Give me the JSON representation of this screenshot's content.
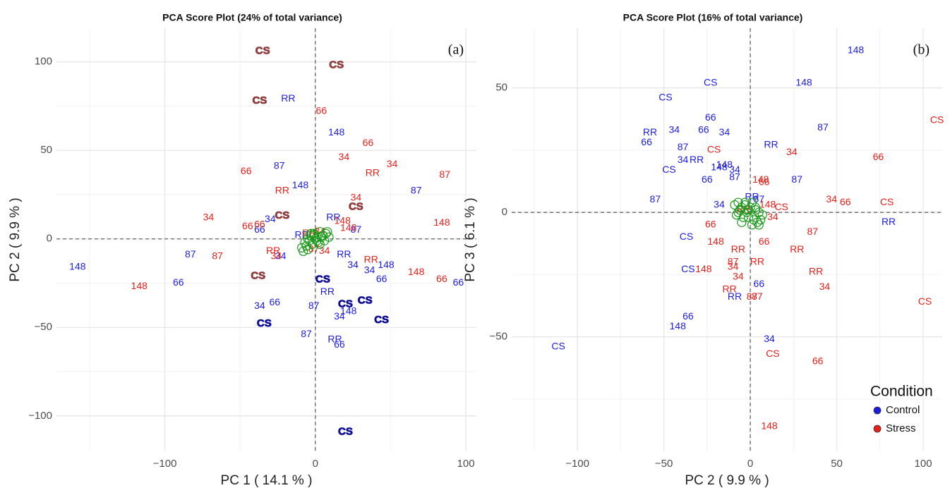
{
  "chart_data": [
    {
      "type": "scatter",
      "title": "PCA Score Plot (24% of total variance)",
      "annotation": "(a)",
      "xlabel": "PC 1 ( 14.1 % )",
      "ylabel": "PC 2 ( 9.9 % )",
      "xlim": [
        -172,
        107
      ],
      "ylim": [
        -120,
        119
      ],
      "xticks": [
        {
          "value": -100,
          "label": "−100"
        },
        0,
        100
      ],
      "yticks": [
        {
          "value": -100,
          "label": "−100"
        },
        {
          "value": -50,
          "label": "−50"
        },
        0,
        50,
        100
      ],
      "grid": true,
      "zero_lines": true,
      "series": [
        {
          "color": "#1c1ce0",
          "labels": [
            "RR",
            "148",
            "87",
            "148",
            "87",
            "34",
            "66",
            "RR",
            "87",
            "RR",
            "RR",
            "87",
            "148",
            "34",
            "34",
            "34",
            "148",
            "66",
            "66",
            "66",
            "RR",
            "34",
            "66",
            "87",
            "148",
            "34",
            "87",
            "RR",
            "66"
          ],
          "x": [
            -18,
            14,
            -24,
            -10,
            67,
            -30,
            -37,
            12,
            27,
            -9,
            19,
            -83,
            -158,
            -23,
            25,
            36,
            47,
            -91,
            44,
            95,
            8,
            -37,
            -27,
            -1,
            22,
            16,
            -6,
            13,
            16
          ],
          "y": [
            79,
            60,
            41,
            30,
            27,
            11,
            5,
            12,
            5,
            2,
            -9,
            -9,
            -16,
            -10,
            -15,
            -18,
            -15,
            -25,
            -23,
            -25,
            -30,
            -38,
            -36,
            -38,
            -41,
            -44,
            -54,
            -57,
            -60
          ]
        },
        {
          "color": "#e8201a",
          "labels": [
            "66",
            "66",
            "34",
            "34",
            "RR",
            "87",
            "66",
            "RR",
            "34",
            "34",
            "66",
            "66",
            "148",
            "148",
            "148",
            "RR",
            "34",
            "87",
            "34",
            "87",
            "RR",
            "148",
            "66",
            "148",
            "RR",
            "34"
          ],
          "x": [
            4,
            35,
            19,
            51,
            38,
            86,
            -46,
            -22,
            27,
            -71,
            -45,
            -37,
            18,
            22,
            84,
            -28,
            -26,
            -65,
            6,
            -1,
            37,
            67,
            84,
            -117,
            -4,
            3
          ],
          "y": [
            72,
            54,
            46,
            42,
            37,
            36,
            38,
            27,
            23,
            12,
            7,
            8,
            10,
            6,
            9,
            -7,
            -10,
            -10,
            -7,
            -6,
            -12,
            -19,
            -23,
            -27,
            3,
            4
          ]
        },
        {
          "color": "#8f3b3b",
          "bold": true,
          "labels": [
            "CS",
            "CS",
            "CS",
            "CS",
            "CS",
            "CS"
          ],
          "x": [
            -35,
            14,
            -37,
            -22,
            27,
            -38
          ],
          "y": [
            106,
            98,
            78,
            13,
            18,
            -21
          ]
        },
        {
          "color": "#0c0c96",
          "bold": true,
          "labels": [
            "CS",
            "CS",
            "CS",
            "CS",
            "CS",
            "CS"
          ],
          "x": [
            5,
            20,
            33,
            44,
            -34,
            20
          ],
          "y": [
            -23,
            -37,
            -35,
            -46,
            -48,
            -109
          ]
        },
        {
          "color": "#1a9a1a",
          "marker": "circle",
          "x": [
            -9,
            -7,
            -5,
            -3,
            -1,
            1,
            3,
            5,
            7,
            9,
            -8,
            -6,
            -4,
            -2,
            0,
            2,
            4,
            6,
            -5,
            -1,
            3,
            -3,
            1,
            8
          ],
          "y": [
            -5,
            -2,
            0,
            2,
            3,
            1,
            4,
            2,
            3,
            1,
            -7,
            -4,
            -1,
            -3,
            0,
            -2,
            1,
            -1,
            -6,
            2,
            -3,
            3,
            -1,
            4
          ]
        }
      ]
    },
    {
      "type": "scatter",
      "title": "PCA Score Plot (16% of total variance)",
      "annotation": "(b)",
      "xlabel": "PC 2 ( 9.9 % )",
      "ylabel": "PC 3 ( 6.1 % )",
      "xlim": [
        -138,
        111
      ],
      "ylim": [
        -96,
        74
      ],
      "xticks": [
        {
          "value": -100,
          "label": "−100"
        },
        {
          "value": -50,
          "label": "−50"
        },
        0,
        50,
        100
      ],
      "yticks": [
        {
          "value": -50,
          "label": "−50"
        },
        0,
        50
      ],
      "grid": true,
      "zero_lines": true,
      "legend": {
        "title": "Condition",
        "position": "bottom-right"
      },
      "series": [
        {
          "name": "Control",
          "color": "#1c1ce0",
          "labels": [
            "148",
            "CS",
            "148",
            "CS",
            "66",
            "87",
            "RR",
            "34",
            "66",
            "34",
            "66",
            "87",
            "RR",
            "34",
            "RR",
            "148",
            "148",
            "34",
            "CS",
            "87",
            "66",
            "87",
            "RR",
            "87",
            "87",
            "34",
            "RR",
            "CS",
            "CS",
            "66",
            "RR",
            "66",
            "148",
            "34",
            "CS"
          ],
          "x": [
            61,
            -23,
            31,
            -49,
            -23,
            42,
            -58,
            -44,
            -27,
            -15,
            -60,
            -39,
            12,
            -39,
            -31,
            -15,
            -18,
            -9,
            -47,
            -9,
            -25,
            27,
            1,
            5,
            -55,
            -18,
            80,
            -37,
            -36,
            5,
            -9,
            -36,
            -42,
            11,
            -111
          ],
          "y": [
            65,
            52,
            52,
            46,
            38,
            34,
            32,
            33,
            33,
            32,
            28,
            26,
            27,
            21,
            21,
            19,
            18,
            17,
            17,
            14,
            13,
            13,
            6,
            5,
            5,
            3,
            -4,
            -10,
            -23,
            -29,
            -34,
            -42,
            -46,
            -51,
            -54
          ]
        },
        {
          "name": "Stress",
          "color": "#e8201a",
          "labels": [
            "CS",
            "CS",
            "34",
            "66",
            "148",
            "66",
            "34",
            "66",
            "CS",
            "148",
            "CS",
            "34",
            "66",
            "87",
            "66",
            "148",
            "RR",
            "RR",
            "87",
            "RR",
            "34",
            "148",
            "RR",
            "34",
            "34",
            "RR",
            "87",
            "87",
            "CS",
            "CS",
            "66",
            "148",
            "RR"
          ],
          "x": [
            108,
            -21,
            24,
            74,
            6,
            8,
            47,
            55,
            79,
            10,
            18,
            13,
            -23,
            36,
            8,
            -20,
            -7,
            27,
            -10,
            4,
            -10,
            -27,
            38,
            -7,
            43,
            -12,
            1,
            4,
            101,
            13,
            39,
            11,
            -4
          ],
          "y": [
            37,
            25,
            24,
            22,
            13,
            12,
            5,
            4,
            4,
            3,
            2,
            -2,
            -5,
            -8,
            -12,
            -12,
            -15,
            -15,
            -20,
            -20,
            -22,
            -23,
            -24,
            -26,
            -30,
            -31,
            -34,
            -34,
            -36,
            -57,
            -60,
            -86,
            1
          ]
        },
        {
          "color": "#1a9a1a",
          "marker": "circle",
          "x": [
            -9,
            -7,
            -5,
            -3,
            -1,
            1,
            3,
            5,
            7,
            -8,
            -6,
            -4,
            -2,
            0,
            2,
            4,
            6,
            -5,
            -1,
            3,
            -3,
            1,
            5,
            -7
          ],
          "y": [
            3,
            4,
            2,
            3,
            1,
            4,
            2,
            0,
            -1,
            -1,
            1,
            -2,
            0,
            2,
            -3,
            -4,
            -3,
            -4,
            -2,
            1,
            4,
            -5,
            -5,
            0
          ]
        }
      ]
    }
  ]
}
